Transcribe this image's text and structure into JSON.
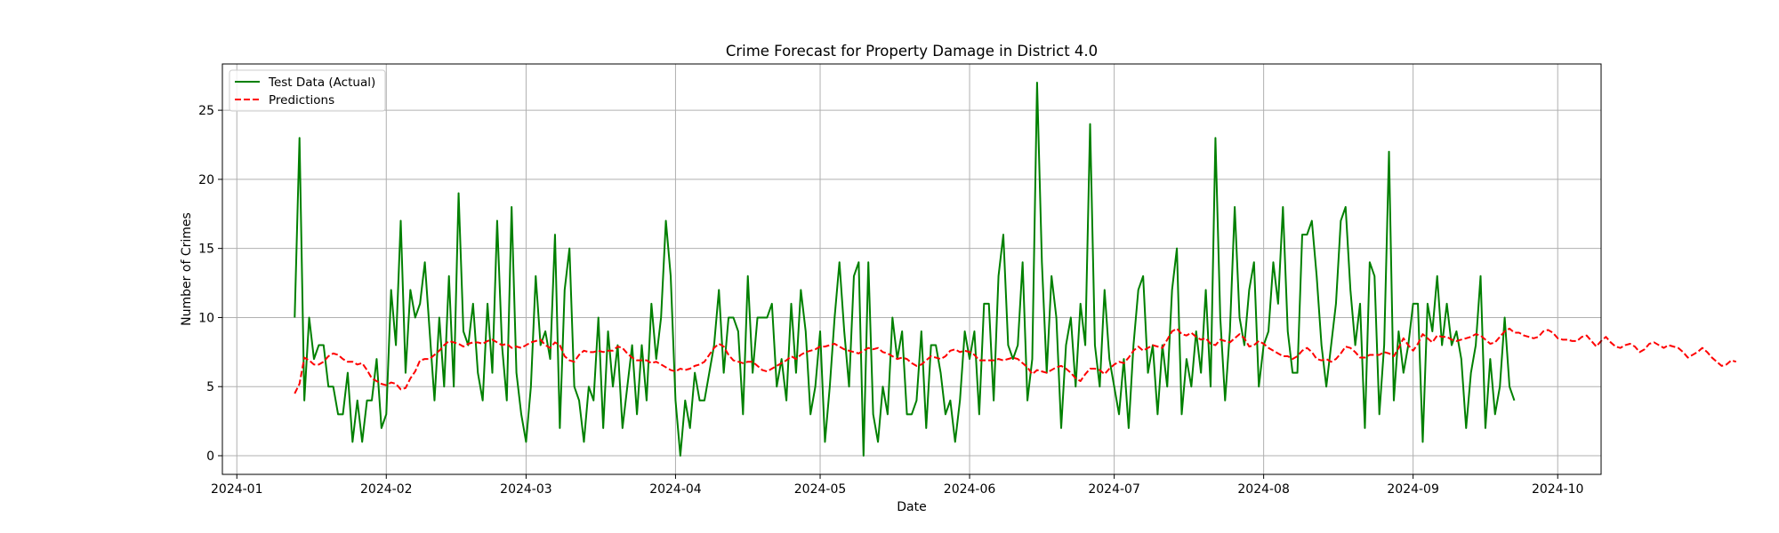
{
  "chart_data": {
    "type": "line",
    "title": "Crime Forecast for Property Damage in District 4.0",
    "xlabel": "Date",
    "ylabel": "Number of Crimes",
    "x_start": "2024-01-13",
    "x_ticks": [
      "2024-01",
      "2024-02",
      "2024-03",
      "2024-04",
      "2024-05",
      "2024-06",
      "2024-07",
      "2024-08",
      "2024-09",
      "2024-10"
    ],
    "xlim": [
      "2023-12-29",
      "2024-10-10"
    ],
    "y_ticks": [
      0,
      5,
      10,
      15,
      20,
      25
    ],
    "ylim": [
      -1.35,
      28.35
    ],
    "grid": true,
    "legend": {
      "placement": "top-left"
    },
    "series": [
      {
        "name": "Test Data (Actual)",
        "color": "#008000",
        "style": "solid",
        "values": [
          10,
          23,
          4,
          10,
          7,
          8,
          8,
          5,
          5,
          3,
          3,
          6,
          1,
          4,
          1,
          4,
          4,
          7,
          2,
          3,
          12,
          8,
          17,
          6,
          12,
          10,
          11,
          14,
          9,
          4,
          10,
          5,
          13,
          5,
          19,
          9,
          8,
          11,
          6,
          4,
          11,
          6,
          17,
          8,
          4,
          18,
          6,
          3,
          1,
          5,
          13,
          8,
          9,
          7,
          16,
          2,
          12,
          15,
          5,
          4,
          1,
          5,
          4,
          10,
          2,
          9,
          5,
          8,
          2,
          5,
          8,
          3,
          8,
          4,
          11,
          7,
          10,
          17,
          13,
          4,
          0,
          4,
          2,
          6,
          4,
          4,
          6,
          8,
          12,
          6,
          10,
          10,
          9,
          3,
          13,
          6,
          10,
          10,
          10,
          11,
          5,
          7,
          4,
          11,
          6,
          12,
          9,
          3,
          5,
          9,
          1,
          5,
          10,
          14,
          9,
          5,
          13,
          14,
          0,
          14,
          3,
          1,
          5,
          3,
          10,
          7,
          9,
          3,
          3,
          4,
          9,
          2,
          8,
          8,
          6,
          3,
          4,
          1,
          4,
          9,
          7,
          9,
          3,
          11,
          11,
          4,
          13,
          16,
          8,
          7,
          8,
          14,
          4,
          7,
          27,
          14,
          6,
          13,
          10,
          2,
          8,
          10,
          5,
          11,
          8,
          24,
          8,
          5,
          12,
          7,
          5,
          3,
          7,
          2,
          8,
          12,
          13,
          6,
          8,
          3,
          8,
          5,
          12,
          15,
          3,
          7,
          5,
          9,
          6,
          12,
          5,
          23,
          10,
          4,
          9,
          18,
          10,
          8,
          12,
          14,
          5,
          8,
          9,
          14,
          11,
          18,
          9,
          6,
          6,
          16,
          16,
          17,
          13,
          8,
          5,
          8,
          11,
          17,
          18,
          12,
          8,
          11,
          2,
          14,
          13,
          3,
          8,
          22,
          4,
          9,
          6,
          8,
          11,
          11,
          1,
          11,
          9,
          13,
          8,
          11,
          8,
          9,
          7,
          2,
          6,
          8,
          13,
          2,
          7,
          3,
          5,
          10,
          5,
          4
        ]
      },
      {
        "name": "Predictions",
        "color": "#ff0000",
        "style": "dashed",
        "values": [
          4.5,
          5.2,
          7.1,
          6.9,
          6.6,
          6.6,
          6.8,
          7.2,
          7.4,
          7.3,
          7.0,
          6.8,
          6.8,
          6.6,
          6.7,
          6.2,
          5.6,
          5.4,
          5.2,
          5.1,
          5.3,
          5.2,
          4.8,
          4.9,
          5.6,
          6.1,
          6.9,
          7.0,
          7.0,
          7.3,
          7.6,
          8.0,
          8.3,
          8.2,
          8.1,
          7.9,
          8.1,
          8.2,
          8.2,
          8.1,
          8.3,
          8.4,
          8.2,
          8.0,
          8.1,
          7.8,
          7.9,
          7.8,
          8.0,
          8.2,
          8.3,
          8.4,
          8.0,
          7.8,
          8.2,
          8.0,
          7.2,
          6.9,
          6.8,
          7.3,
          7.6,
          7.5,
          7.5,
          7.6,
          7.5,
          7.6,
          7.6,
          7.9,
          7.8,
          7.4,
          7.1,
          6.9,
          6.9,
          6.9,
          6.7,
          6.8,
          6.6,
          6.4,
          6.2,
          6.1,
          6.3,
          6.2,
          6.3,
          6.5,
          6.6,
          6.8,
          7.3,
          7.8,
          8.1,
          7.9,
          7.3,
          6.9,
          6.8,
          6.7,
          6.8,
          6.8,
          6.5,
          6.2,
          6.1,
          6.3,
          6.5,
          6.7,
          6.9,
          7.2,
          7.0,
          7.3,
          7.5,
          7.6,
          7.7,
          7.9,
          7.9,
          8.0,
          8.1,
          7.9,
          7.7,
          7.6,
          7.5,
          7.4,
          7.6,
          7.8,
          7.7,
          7.8,
          7.5,
          7.4,
          7.2,
          7.0,
          7.1,
          7.0,
          6.7,
          6.5,
          6.6,
          6.9,
          7.2,
          7.1,
          7.0,
          7.2,
          7.6,
          7.7,
          7.5,
          7.6,
          7.5,
          7.3,
          6.9,
          6.9,
          6.9,
          6.9,
          7.0,
          6.9,
          7.0,
          7.1,
          7.0,
          6.7,
          6.4,
          5.9,
          6.2,
          6.1,
          6.0,
          6.2,
          6.4,
          6.5,
          6.3,
          6.0,
          5.6,
          5.4,
          5.9,
          6.3,
          6.3,
          6.2,
          5.9,
          6.3,
          6.6,
          6.8,
          6.7,
          7.1,
          7.6,
          7.9,
          7.6,
          7.8,
          8.0,
          7.9,
          7.8,
          8.4,
          9.0,
          9.2,
          8.8,
          8.7,
          8.9,
          8.6,
          8.4,
          8.5,
          8.1,
          8.0,
          8.4,
          8.3,
          8.2,
          8.5,
          8.8,
          8.5,
          7.9,
          8.0,
          8.3,
          8.1,
          7.8,
          7.6,
          7.4,
          7.2,
          7.2,
          7.0,
          7.2,
          7.6,
          7.8,
          7.5,
          7.0,
          6.9,
          7.0,
          6.8,
          7.0,
          7.4,
          7.9,
          7.8,
          7.5,
          7.1,
          7.1,
          7.3,
          7.3,
          7.3,
          7.5,
          7.4,
          7.2,
          7.8,
          8.5,
          8.0,
          7.6,
          8.1,
          8.8,
          8.5,
          8.2,
          8.7,
          8.6,
          8.6,
          8.4,
          8.3,
          8.4,
          8.5,
          8.6,
          8.8,
          8.7,
          8.4,
          8.1,
          8.2,
          8.6,
          9.0,
          9.2,
          8.9,
          8.9,
          8.7,
          8.6,
          8.5,
          8.6,
          9.0,
          9.1,
          8.9,
          8.5,
          8.4,
          8.4,
          8.3,
          8.3,
          8.6,
          8.7,
          8.3,
          7.9,
          8.3,
          8.6,
          8.2,
          7.9,
          7.8,
          8.0,
          8.1,
          7.9,
          7.5,
          7.7,
          8.1,
          8.2,
          8.0,
          7.8,
          8.0,
          7.9,
          7.8,
          7.5,
          7.1,
          7.3,
          7.5,
          7.8,
          7.5,
          7.1,
          6.8,
          6.5,
          6.6,
          6.9,
          6.8
        ]
      }
    ]
  }
}
